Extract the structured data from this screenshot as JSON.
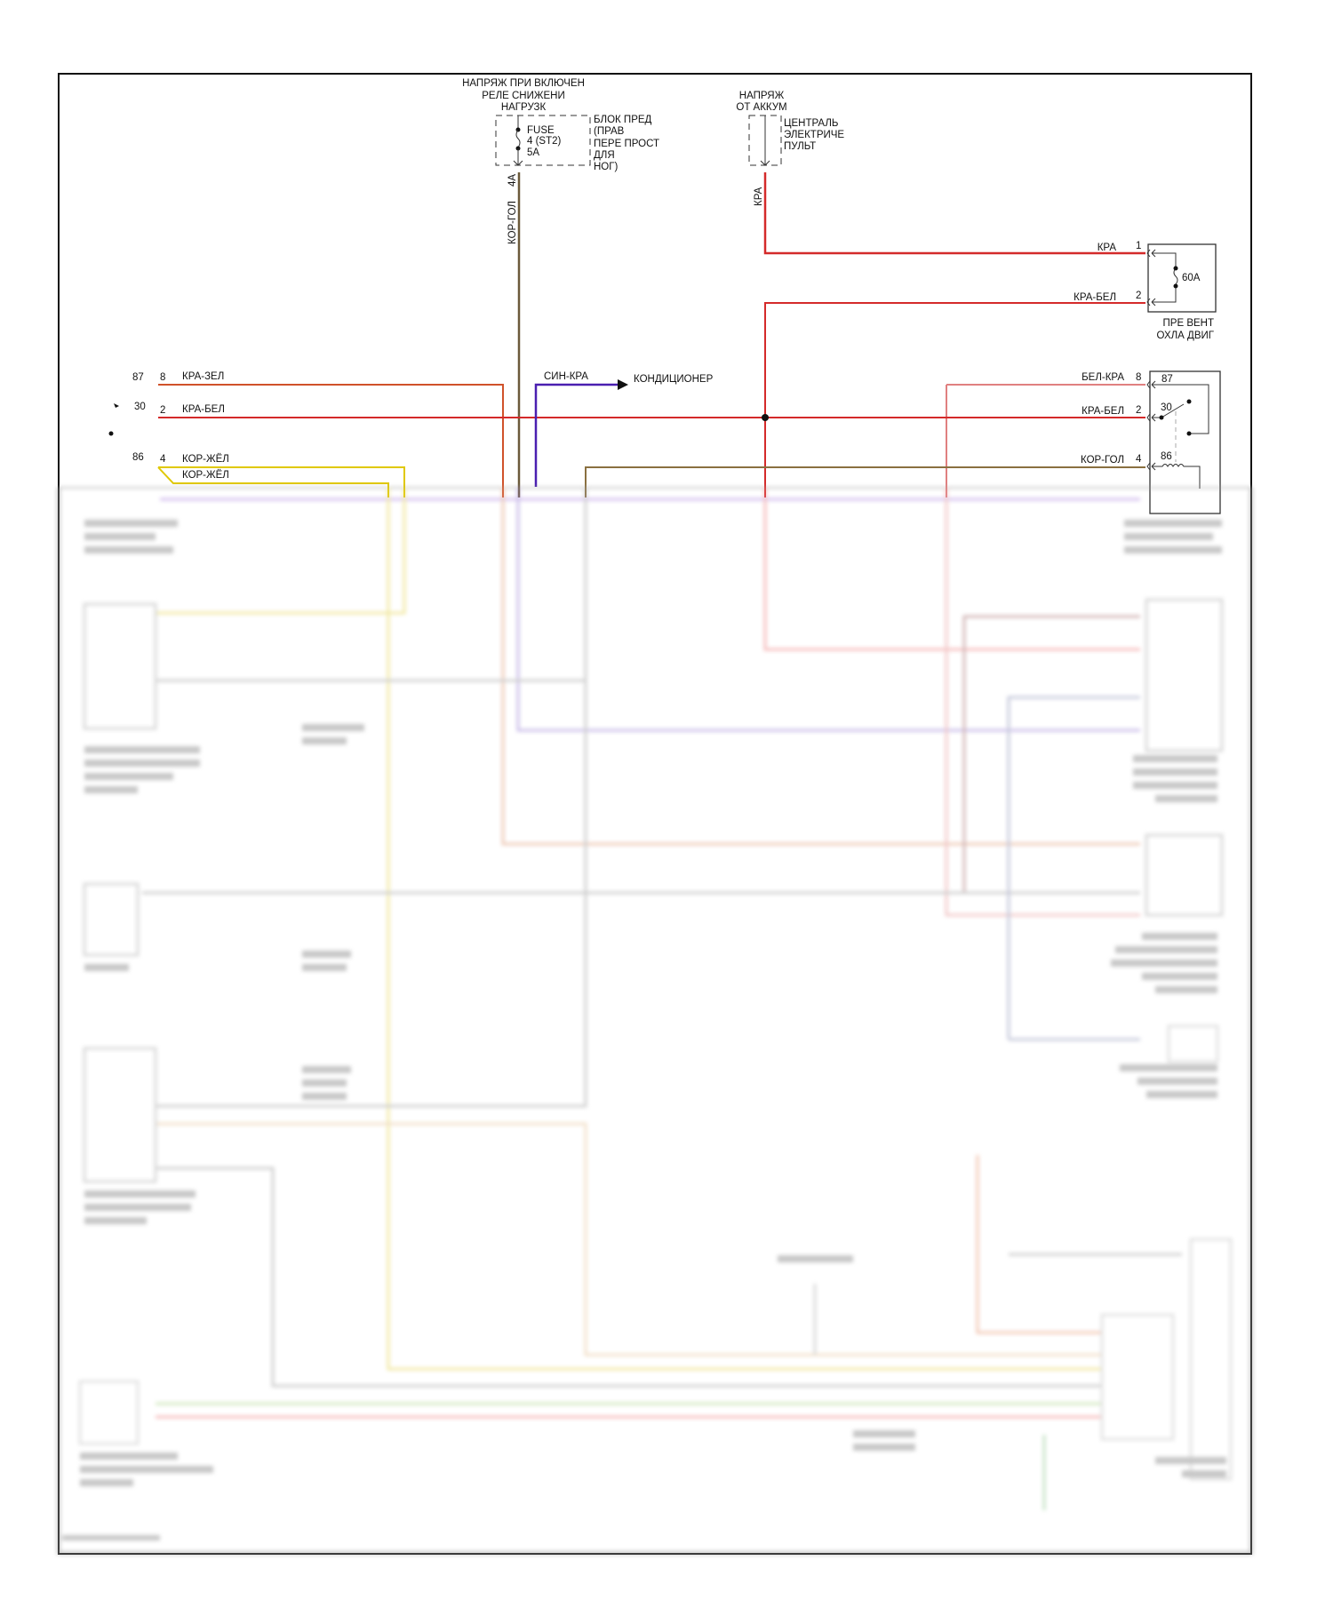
{
  "diagram": {
    "top_left_source": {
      "title_lines": [
        "НАПРЯЖ ПРИ ВКЛЮЧЕН",
        "РЕЛЕ СНИЖЕНИ",
        "НАГРУЗК"
      ],
      "fuse_label_lines": [
        "FUSE",
        "4 (ST2)",
        "5A"
      ],
      "block_label_lines": [
        "БЛОК ПРЕД",
        "(ПРАВ",
        "ПЕРЕ ПРОСТ",
        "ДЛЯ",
        "НОГ)"
      ],
      "pin": "4A",
      "wire": "КОР-ГОЛ"
    },
    "top_right_source": {
      "title_lines": [
        "НАПРЯЖ",
        "ОТ АККУМ"
      ],
      "block_label_lines": [
        "ЦЕНТРАЛЬ",
        "ЭЛЕКТРИЧЕ",
        "ПУЛЬТ"
      ],
      "wire": "КРА"
    },
    "fuse_60a": {
      "rating": "60A",
      "pins": [
        {
          "num": "1",
          "wire": "КРА"
        },
        {
          "num": "2",
          "wire": "КРА-БЕЛ"
        }
      ],
      "label_lines": [
        "ПРЕ ВЕНТ",
        "ОХЛА ДВИГ"
      ]
    },
    "relay_right": {
      "pins": [
        {
          "num": "8",
          "terminal": "87",
          "wire": "БЕЛ-КРА"
        },
        {
          "num": "2",
          "terminal": "30",
          "wire": "КРА-БЕЛ"
        },
        {
          "num": "4",
          "terminal": "86",
          "wire": "КОР-ГОЛ"
        }
      ]
    },
    "relay_left": {
      "pins": [
        {
          "terminal": "87",
          "num": "8",
          "wire": "КРА-ЗЕЛ"
        },
        {
          "terminal": "30",
          "num": "2",
          "wire": "КРА-БЕЛ"
        },
        {
          "terminal": "86",
          "num": "4",
          "wire": "КОР-ЖЁЛ"
        }
      ],
      "extra_wire": "КОР-ЖЁЛ"
    },
    "ac_branch": {
      "wire": "СИН-КРА",
      "destination": "КОНДИЦИОНЕР"
    },
    "colors": {
      "red": "#d42a2a",
      "orange_red": "#d0522a",
      "brown_blue": "#6b5a3a",
      "yellow": "#e0c800",
      "purple": "#4a1fb0",
      "frame": "#111111"
    }
  }
}
